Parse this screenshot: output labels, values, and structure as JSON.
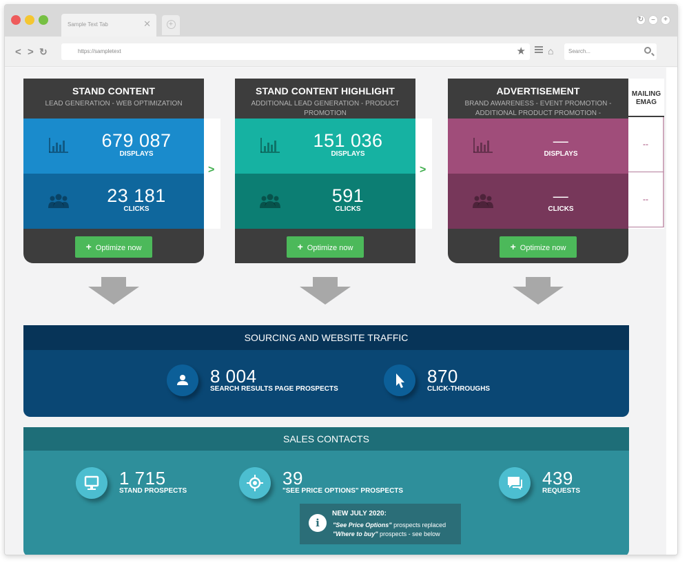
{
  "browser": {
    "tab_label": "Sample Text Tab",
    "tab_close": "✕",
    "newtab": "+",
    "url": "https://sampletext",
    "search_placeholder": "Search..."
  },
  "cards": [
    {
      "title": "STAND CONTENT",
      "subtitle": "LEAD GENERATION - WEB OPTIMIZATION",
      "displays_value": "679 087",
      "displays_label": "DISPLAYS",
      "clicks_value": "23 181",
      "clicks_label": "CLICKS",
      "button": "Optimize now"
    },
    {
      "title": "STAND CONTENT HIGHLIGHT",
      "subtitle": "ADDITIONAL LEAD GENERATION - PRODUCT PROMOTION",
      "displays_value": "151 036",
      "displays_label": "DISPLAYS",
      "clicks_value": "591",
      "clicks_label": "CLICKS",
      "button": "Optimize now"
    },
    {
      "title": "ADVERTISEMENT",
      "subtitle": "BRAND AWARENESS - EVENT PROMOTION - ADDITIONAL PRODUCT PROMOTION - ADDITIONAL LEAD GENERATION",
      "displays_value": "—",
      "displays_label": "DISPLAYS",
      "clicks_value": "—",
      "clicks_label": "CLICKS",
      "button": "Optimize now"
    }
  ],
  "partial_card": {
    "title_line1": "MAILING",
    "title_line2": "EMAG",
    "displays_value": "--",
    "clicks_value": "--"
  },
  "sourcing": {
    "title": "SOURCING AND WEBSITE TRAFFIC",
    "metrics": [
      {
        "value": "8 004",
        "label": "SEARCH RESULTS PAGE PROSPECTS",
        "icon": "user-icon"
      },
      {
        "value": "870",
        "label": "CLICK-THROUGHS",
        "icon": "cursor-icon"
      }
    ]
  },
  "sales": {
    "title": "SALES CONTACTS",
    "metrics": [
      {
        "value": "1 715",
        "label": "STAND PROSPECTS",
        "icon": "monitor-icon"
      },
      {
        "value": "39",
        "label": "\"SEE PRICE OPTIONS\" PROSPECTS",
        "icon": "target-icon"
      },
      {
        "value": "439",
        "label": "REQUESTS",
        "icon": "chat-icon"
      }
    ],
    "notice": {
      "icon": "i",
      "title": "NEW JULY 2020:",
      "line1_em": "\"See Price Options\"",
      "line1_rest": " prospects replaced",
      "line2_em": "\"Where to buy\"",
      "line2_rest": " prospects - see below"
    }
  },
  "colors": {
    "card_dark": "#3d3d3d",
    "blue_light": "#1a8bcc",
    "blue_dark": "#0f679d",
    "teal_light": "#16b2a2",
    "teal_dark": "#0c7e73",
    "plum_light": "#a04d7a",
    "plum_dark": "#77375a",
    "button_green": "#4cb95a",
    "sourcing_band": "#0a4774",
    "sales_band": "#2e8f9b"
  }
}
